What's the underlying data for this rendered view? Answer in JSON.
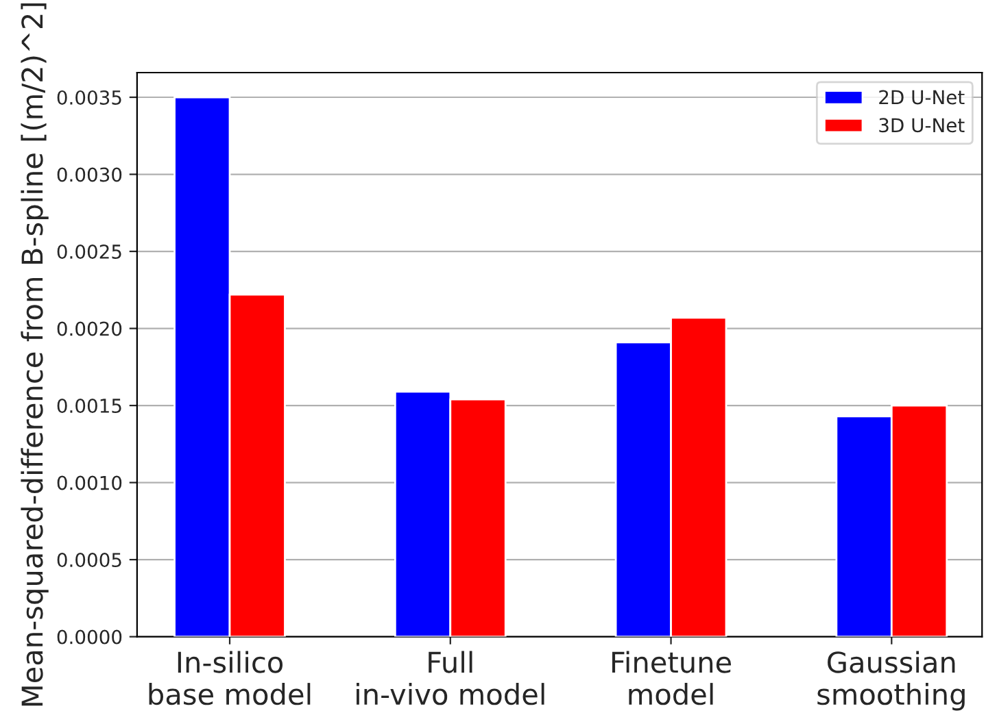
{
  "chart_data": {
    "type": "bar",
    "categories": [
      "In-silico\nbase model",
      "Full\nin-vivo model",
      "Finetune\nmodel",
      "Gaussian\nsmoothing"
    ],
    "series": [
      {
        "name": "2D U-Net",
        "color": "#0000ff",
        "values": [
          0.0035,
          0.00159,
          0.00191,
          0.00143
        ]
      },
      {
        "name": "3D U-Net",
        "color": "#ff0000",
        "values": [
          0.00222,
          0.00154,
          0.00207,
          0.0015
        ]
      }
    ],
    "ylabel": "Mean-squared-difference from B-spline [(m/2)^2]",
    "ylim": [
      0,
      0.00366
    ],
    "yticks": [
      {
        "value": 0,
        "label": "0.0000"
      },
      {
        "value": 0.0005,
        "label": "0.0005"
      },
      {
        "value": 0.001,
        "label": "0.0010"
      },
      {
        "value": 0.0015,
        "label": "0.0015"
      },
      {
        "value": 0.002,
        "label": "0.0020"
      },
      {
        "value": 0.0025,
        "label": "0.0025"
      },
      {
        "value": 0.003,
        "label": "0.0030"
      },
      {
        "value": 0.0035,
        "label": "0.0035"
      }
    ],
    "grid": "y",
    "legend": "top right"
  }
}
